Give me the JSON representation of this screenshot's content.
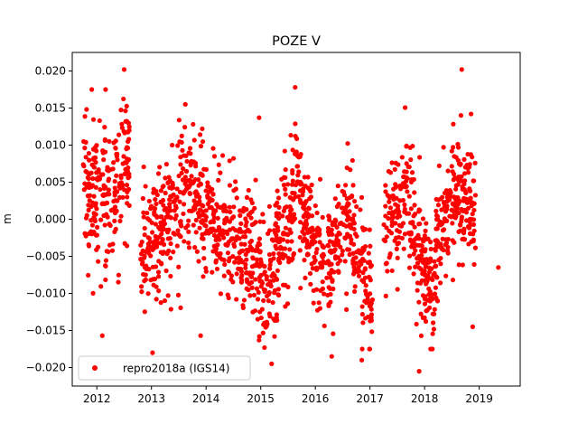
{
  "chart_data": {
    "type": "scatter",
    "title": "POZE V",
    "xlabel": "",
    "ylabel": "m",
    "xlim": [
      2011.55,
      2019.75
    ],
    "ylim": [
      -0.0225,
      0.0225
    ],
    "x_ticks": [
      2012,
      2013,
      2014,
      2015,
      2016,
      2017,
      2018,
      2019
    ],
    "x_tick_labels": [
      "2012",
      "2013",
      "2014",
      "2015",
      "2016",
      "2017",
      "2018",
      "2019"
    ],
    "y_ticks": [
      -0.02,
      -0.015,
      -0.01,
      -0.005,
      0.0,
      0.005,
      0.01,
      0.015,
      0.02
    ],
    "y_tick_labels": [
      "−0.020",
      "−0.015",
      "−0.010",
      "−0.005",
      "0.000",
      "0.005",
      "0.010",
      "0.015",
      "0.020"
    ],
    "grid": false,
    "legend_position": "lower-left",
    "series": [
      {
        "name": "repro2018a (IGS14)",
        "color": "#ff0000",
        "marker": "circle",
        "clusters": [
          {
            "x_start": 2011.75,
            "x_end": 2012.15,
            "y_start": 0.004,
            "y_end": 0.003,
            "spread": 0.0045,
            "n": 110
          },
          {
            "x_start": 2012.15,
            "x_end": 2012.6,
            "y_start": 0.001,
            "y_end": 0.009,
            "spread": 0.0045,
            "n": 120
          },
          {
            "x_start": 2012.8,
            "x_end": 2013.55,
            "y_start": -0.005,
            "y_end": 0.0025,
            "spread": 0.0045,
            "n": 200
          },
          {
            "x_start": 2013.55,
            "x_end": 2014.5,
            "y_start": 0.006,
            "y_end": -0.004,
            "spread": 0.0042,
            "n": 230
          },
          {
            "x_start": 2014.5,
            "x_end": 2015.2,
            "y_start": -0.002,
            "y_end": -0.009,
            "spread": 0.0042,
            "n": 180
          },
          {
            "x_start": 2015.2,
            "x_end": 2015.7,
            "y_start": -0.007,
            "y_end": 0.005,
            "spread": 0.0042,
            "n": 140
          },
          {
            "x_start": 2015.7,
            "x_end": 2016.25,
            "y_start": 0.0025,
            "y_end": -0.008,
            "spread": 0.004,
            "n": 140
          },
          {
            "x_start": 2016.25,
            "x_end": 2016.7,
            "y_start": -0.005,
            "y_end": 0.001,
            "spread": 0.004,
            "n": 120
          },
          {
            "x_start": 2016.7,
            "x_end": 2017.05,
            "y_start": -0.002,
            "y_end": -0.011,
            "spread": 0.0042,
            "n": 90
          },
          {
            "x_start": 2017.25,
            "x_end": 2017.7,
            "y_start": -0.002,
            "y_end": 0.005,
            "spread": 0.004,
            "n": 100
          },
          {
            "x_start": 2017.7,
            "x_end": 2018.2,
            "y_start": 0.001,
            "y_end": -0.011,
            "spread": 0.0045,
            "n": 150
          },
          {
            "x_start": 2018.2,
            "x_end": 2018.65,
            "y_start": -0.004,
            "y_end": 0.005,
            "spread": 0.004,
            "n": 130
          },
          {
            "x_start": 2018.65,
            "x_end": 2018.95,
            "y_start": 0.004,
            "y_end": 0.0,
            "spread": 0.004,
            "n": 80
          }
        ],
        "outliers": [
          {
            "x": 2012.16,
            "y": 0.0175
          },
          {
            "x": 2012.5,
            "y": 0.0202
          },
          {
            "x": 2013.02,
            "y": -0.018
          },
          {
            "x": 2013.62,
            "y": 0.0155
          },
          {
            "x": 2015.63,
            "y": 0.0178
          },
          {
            "x": 2015.2,
            "y": -0.0195
          },
          {
            "x": 2016.3,
            "y": -0.0185
          },
          {
            "x": 2016.85,
            "y": -0.019
          },
          {
            "x": 2017.9,
            "y": -0.0205
          },
          {
            "x": 2018.68,
            "y": 0.0202
          },
          {
            "x": 2018.85,
            "y": 0.0142
          },
          {
            "x": 2018.88,
            "y": -0.0145
          },
          {
            "x": 2019.35,
            "y": -0.0065
          },
          {
            "x": 2014.97,
            "y": 0.0137
          },
          {
            "x": 2013.9,
            "y": -0.0157
          },
          {
            "x": 2012.1,
            "y": -0.0157
          }
        ]
      }
    ]
  }
}
